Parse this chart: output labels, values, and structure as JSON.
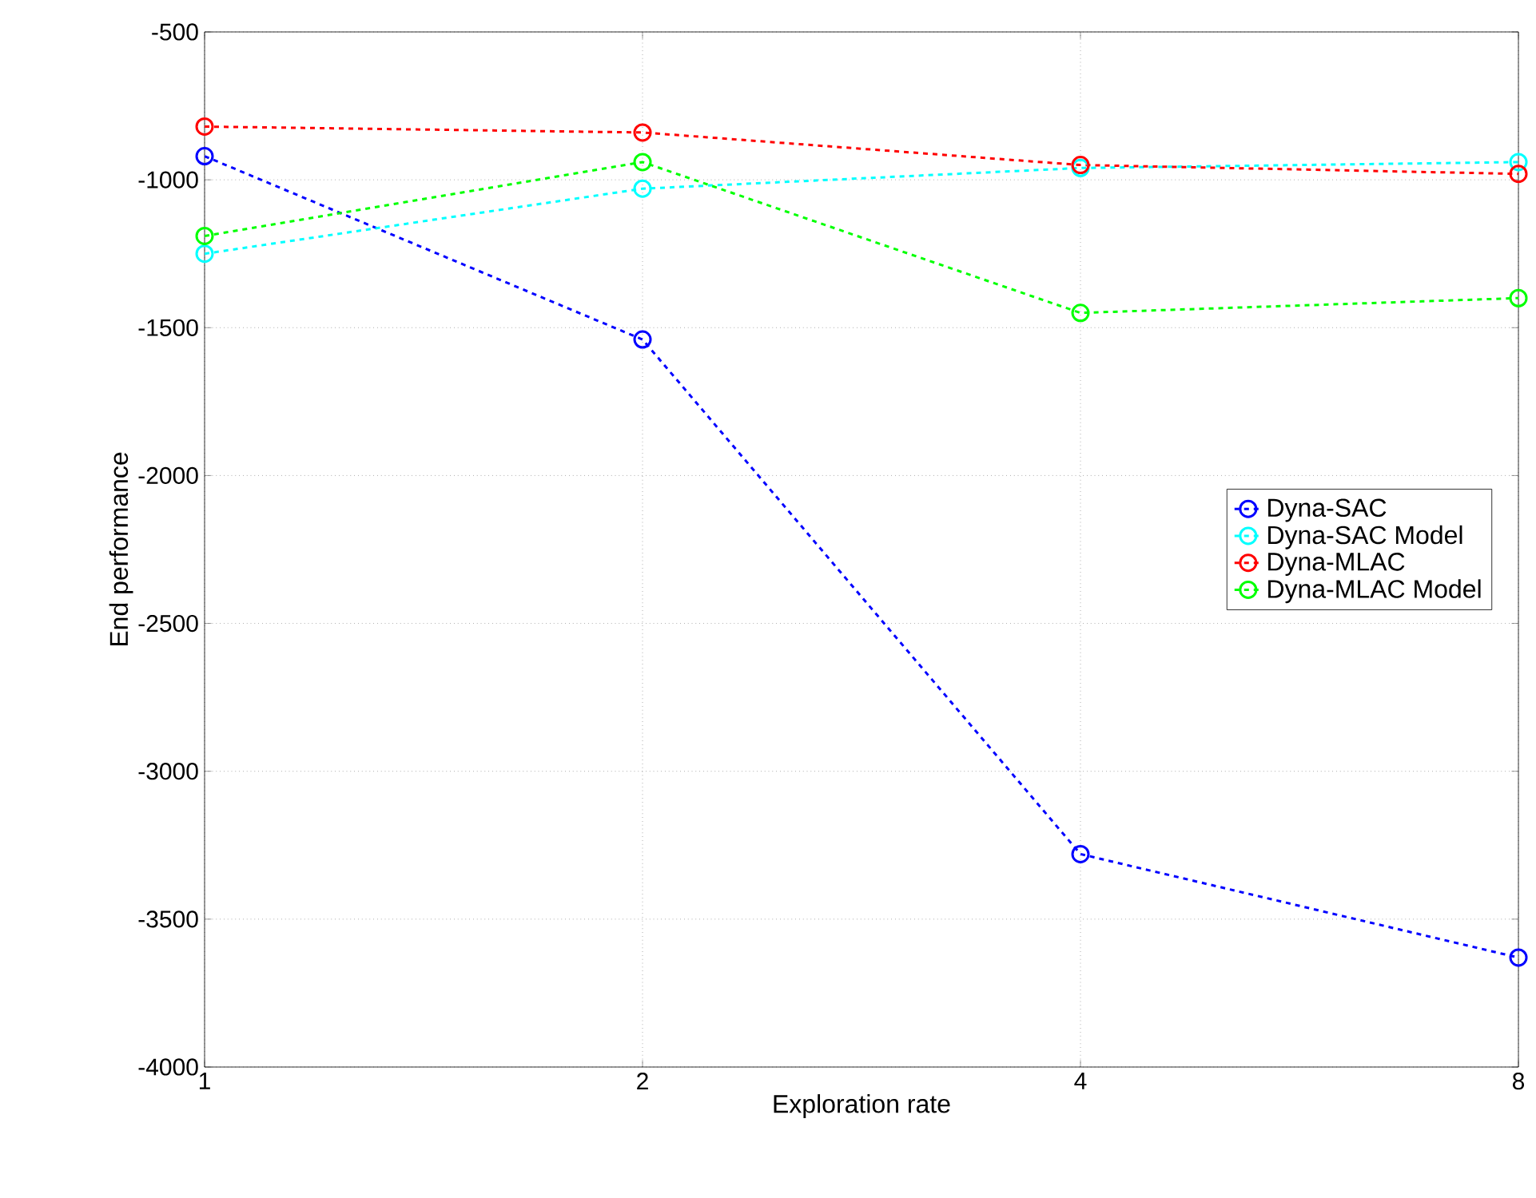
{
  "chart_data": {
    "type": "line",
    "xlabel": "Exploration rate",
    "ylabel": "End performance",
    "categories": [
      "1",
      "2",
      "4",
      "8"
    ],
    "series": [
      {
        "name": "Dyna-SAC",
        "color": "#0000ff",
        "values": [
          -920,
          -1540,
          -3280,
          -3630
        ]
      },
      {
        "name": "Dyna-SAC Model",
        "color": "#00ffff",
        "values": [
          -1250,
          -1030,
          -960,
          -940
        ]
      },
      {
        "name": "Dyna-MLAC",
        "color": "#ff0000",
        "values": [
          -820,
          -840,
          -950,
          -980
        ]
      },
      {
        "name": "Dyna-MLAC Model",
        "color": "#00ff00",
        "values": [
          -1190,
          -940,
          -1450,
          -1400
        ]
      }
    ],
    "ylim": [
      -4000,
      -500
    ],
    "yticks": [
      -4000,
      -3500,
      -3000,
      -2500,
      -2000,
      -1500,
      -1000,
      -500
    ],
    "grid": true,
    "legend": "right",
    "marker": "circle",
    "line_style": "dashed"
  }
}
